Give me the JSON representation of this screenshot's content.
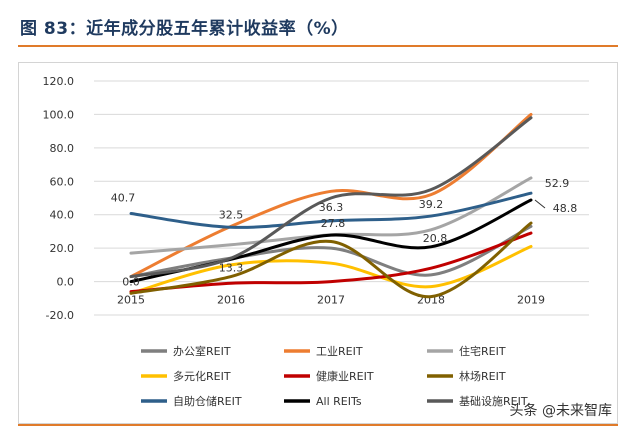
{
  "page": {
    "title": "图 83：近年成分股五年累计收益率（%）"
  },
  "watermark": {
    "text": "头条 @未来智库"
  },
  "chart_data": {
    "type": "line",
    "title": "",
    "xlabel": "",
    "ylabel": "",
    "x": [
      "2015",
      "2016",
      "2017",
      "2018",
      "2019"
    ],
    "ylim": [
      -20,
      120
    ],
    "yticks": [
      "-20.0",
      "0.0",
      "20.0",
      "40.0",
      "60.0",
      "80.0",
      "100.0",
      "120.0"
    ],
    "grid": "horizontal",
    "legend": "bottom",
    "series": [
      {
        "name": "办公室REIT",
        "color": "#7f7f7f",
        "values": [
          3,
          14,
          20,
          4,
          33
        ]
      },
      {
        "name": "工业REIT",
        "color": "#ed7d31",
        "values": [
          3,
          33,
          54,
          52,
          100
        ]
      },
      {
        "name": "住宅REIT",
        "color": "#a5a5a5",
        "values": [
          17,
          22,
          28,
          31,
          62
        ]
      },
      {
        "name": "多元化REIT",
        "color": "#ffc000",
        "values": [
          -7,
          10,
          11,
          -3,
          21
        ]
      },
      {
        "name": "健康业REIT",
        "color": "#c00000",
        "values": [
          -6,
          -1,
          0,
          8,
          29
        ]
      },
      {
        "name": "林场REIT",
        "color": "#806000",
        "values": [
          -7,
          3,
          24,
          -9,
          35
        ]
      },
      {
        "name": "自助仓储REIT",
        "color": "#2e5f8a",
        "values": [
          40.7,
          32.5,
          36.3,
          39.2,
          52.9
        ]
      },
      {
        "name": "All REITs",
        "color": "#000000",
        "values": [
          0.0,
          13.3,
          27.8,
          20.8,
          48.8
        ]
      },
      {
        "name": "基础设施REIT",
        "color": "#595959",
        "values": [
          3,
          14,
          50,
          55,
          98
        ]
      }
    ],
    "annotations": [
      {
        "series": "自助仓储REIT",
        "x": "2015",
        "text": "40.7"
      },
      {
        "series": "自助仓储REIT",
        "x": "2016",
        "text": "32.5"
      },
      {
        "series": "自助仓储REIT",
        "x": "2017",
        "text": "36.3"
      },
      {
        "series": "自助仓储REIT",
        "x": "2018",
        "text": "39.2"
      },
      {
        "series": "自助仓储REIT",
        "x": "2019",
        "text": "52.9"
      },
      {
        "series": "All REITs",
        "x": "2015",
        "text": "0.0"
      },
      {
        "series": "All REITs",
        "x": "2016",
        "text": "13.3"
      },
      {
        "series": "All REITs",
        "x": "2017",
        "text": "27.8"
      },
      {
        "series": "All REITs",
        "x": "2018",
        "text": "20.8"
      },
      {
        "series": "All REITs",
        "x": "2019",
        "text": "48.8"
      }
    ]
  }
}
